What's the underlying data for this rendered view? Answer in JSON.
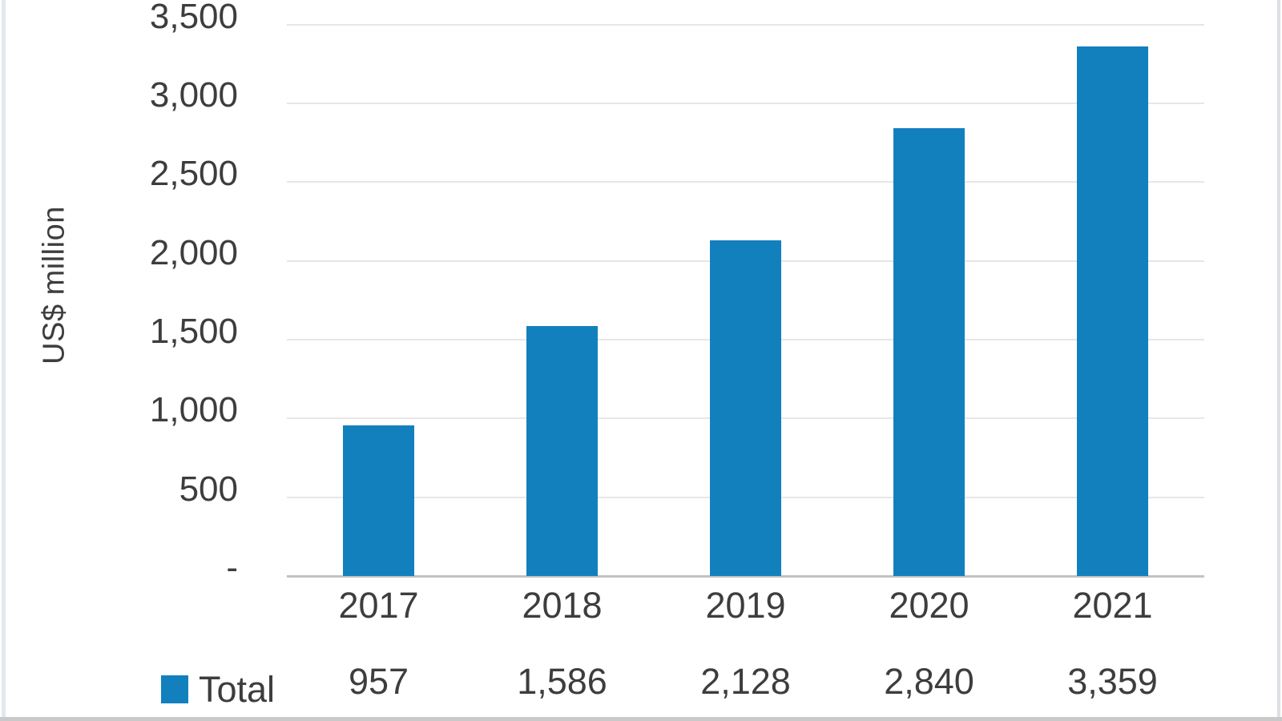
{
  "chart_data": {
    "type": "bar",
    "title": "",
    "xlabel": "",
    "ylabel": "US$ million",
    "categories": [
      "2017",
      "2018",
      "2019",
      "2020",
      "2021"
    ],
    "series": [
      {
        "name": "Total",
        "values": [
          957,
          1586,
          2128,
          2840,
          3359
        ]
      }
    ],
    "value_labels": [
      "957",
      "1,586",
      "2,128",
      "2,840",
      "3,359"
    ],
    "y_ticks": [
      {
        "label": "3,500",
        "value": 3500
      },
      {
        "label": "3,000",
        "value": 3000
      },
      {
        "label": "2,500",
        "value": 2500
      },
      {
        "label": "2,000",
        "value": 2000
      },
      {
        "label": "1,500",
        "value": 1500
      },
      {
        "label": "1,000",
        "value": 1000
      },
      {
        "label": "500",
        "value": 500
      },
      {
        "label": "-",
        "value": 0
      }
    ],
    "ylim": [
      0,
      3500
    ],
    "grid": true,
    "legend_position": "bottom-left",
    "bar_color": "#1380BE"
  },
  "legend": {
    "label": "Total",
    "swatch_color": "#1380BE"
  },
  "colors": {
    "bar": "#1380BE",
    "gridline": "#e7e7e7",
    "axis_line": "#c3c3c3",
    "text": "#3d3d3d",
    "background": "#ffffff"
  }
}
